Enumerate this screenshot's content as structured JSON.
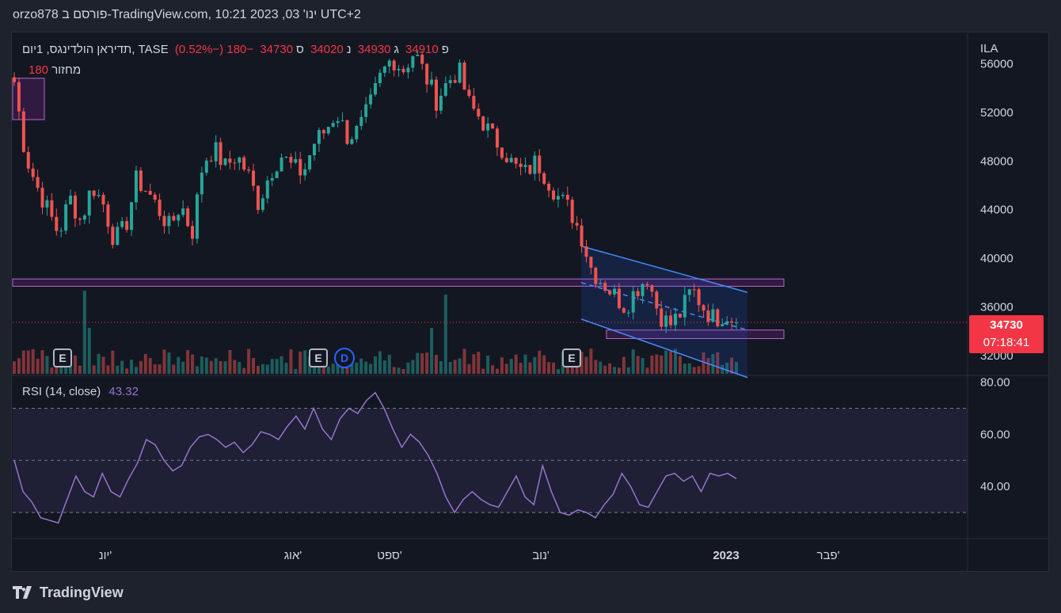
{
  "header": {
    "publish_line": "orzo878 פורסם ב-TradingView.com, 10:21 2023 ,03 'ינו UTC+2"
  },
  "legend": {
    "symbol": "תדיראן הולדינגס, 1יום, TASE",
    "open_label": "פ",
    "open": "34910",
    "high_label": "ג",
    "high": "34930",
    "low_label": "נ",
    "low": "34020",
    "close_label": "ס",
    "close": "34730",
    "change": "−180 (−0.52%)",
    "volume_label": "מחזור",
    "volume": "180"
  },
  "rsi_legend": {
    "label": "RSI (14, close)",
    "value": "43.32"
  },
  "price_tag": {
    "price": "34730",
    "countdown": "07:18:41"
  },
  "events": {
    "earnings": "E",
    "dividend": "D"
  },
  "brand": "TradingView",
  "colors": {
    "up": "#26a69a",
    "down": "#ef5350",
    "rsi": "#9575cd",
    "zone": "#9c27b0",
    "channel": "#2962ff",
    "background": "#131722"
  },
  "chart_data": [
    {
      "type": "candlestick",
      "currency": "ILA",
      "y_ticks": [
        56000,
        52000,
        48000,
        44000,
        40000,
        36000,
        32000
      ],
      "ylim": [
        30500,
        58500
      ],
      "x_ticks": [
        "יונ'",
        "אוג'",
        "ספט'",
        "נוב'",
        "2023",
        "פבר'"
      ],
      "x_tick_bold": "2023",
      "close_path": [
        54500,
        48500,
        46000,
        44000,
        42000,
        45000,
        43000,
        46000,
        44500,
        41500,
        42500,
        46500,
        45500,
        44000,
        42500,
        44500,
        42000,
        48000,
        49000,
        47500,
        48500,
        47000,
        44500,
        47000,
        48500,
        47500,
        47000,
        49500,
        50500,
        52000,
        50000,
        50500,
        52500,
        55000,
        56500,
        55500,
        57000,
        55000,
        53000,
        54500,
        55500,
        52500,
        51500,
        50000,
        49000,
        47500,
        47000,
        48000,
        46500,
        45000,
        44000,
        42000,
        39000,
        38000,
        37000,
        36000,
        37500,
        38500,
        35500,
        34500,
        35500,
        37500,
        36000,
        35000,
        35500,
        34730
      ],
      "last": 34730,
      "zones": [
        {
          "from": 38300,
          "to": 37700,
          "label": "resistance"
        },
        {
          "from": 34100,
          "to": 33400,
          "label": "support"
        },
        {
          "from": 54800,
          "to": 51400,
          "label": "top-left box"
        }
      ],
      "channel": {
        "upper": [
          41000,
          37200
        ],
        "lower": [
          35000,
          30200
        ],
        "mid": [
          38000,
          34100
        ]
      }
    },
    {
      "type": "line",
      "name": "RSI (14, close)",
      "y_ticks": [
        80.0,
        60.0,
        40.0
      ],
      "bands": {
        "upper": 70,
        "middle": 50,
        "lower": 30
      },
      "ylim": [
        20,
        82
      ],
      "values": [
        50,
        38,
        34,
        28,
        27,
        26,
        35,
        44,
        38,
        36,
        45,
        38,
        36,
        43,
        49,
        58,
        56,
        50,
        46,
        48,
        55,
        59,
        60,
        58,
        55,
        57,
        53,
        56,
        61,
        60,
        58,
        63,
        67,
        62,
        70,
        62,
        58,
        66,
        70,
        68,
        73,
        76,
        70,
        62,
        55,
        60,
        57,
        52,
        45,
        36,
        30,
        35,
        38,
        35,
        33,
        32,
        38,
        44,
        36,
        33,
        48,
        38,
        30,
        29,
        31,
        30,
        28,
        33,
        37,
        45,
        40,
        33,
        32,
        38,
        44,
        45,
        42,
        44,
        38,
        45,
        44,
        45,
        43
      ]
    }
  ]
}
